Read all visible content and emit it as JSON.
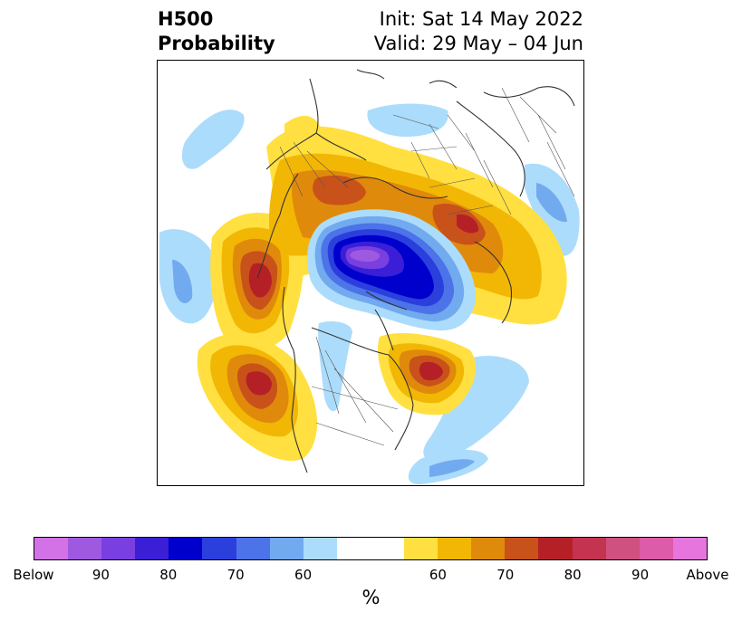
{
  "header": {
    "title_line1": "H500",
    "title_line2": "Probability",
    "init_text": "Init: Sat 14 May 2022",
    "valid_text": "Valid: 29 May – 04 Jun"
  },
  "map": {
    "projection": "north-polar-stereographic",
    "content": "500 hPa height anomaly probability over the Northern Hemisphere",
    "features": [
      "coastlines",
      "country-borders",
      "us-state-borders"
    ]
  },
  "colorbar": {
    "colors": [
      "#d272e6",
      "#9f59e0",
      "#7a3fe0",
      "#3a1fd6",
      "#0000cc",
      "#2b3fdd",
      "#4c73e8",
      "#72aaf0",
      "#acdcfb",
      "#ffffff",
      "#ffffff",
      "#ffe040",
      "#f2b705",
      "#e08a0b",
      "#c8521a",
      "#b52027",
      "#c43450",
      "#d05080",
      "#dd5ba8",
      "#e676dd"
    ],
    "tick_labels": [
      "Below",
      "90",
      "80",
      "70",
      "60",
      "",
      "60",
      "70",
      "80",
      "90",
      "Above"
    ],
    "unit_label": "%"
  }
}
